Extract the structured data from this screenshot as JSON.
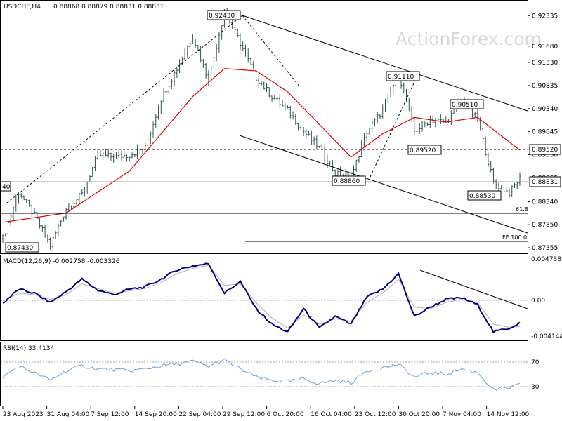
{
  "header": {
    "symbol": "USDCHF,H4",
    "ohlc": "0.88868 0.88879 0.88831 0.88831"
  },
  "watermark": "ActionForex.com",
  "colors": {
    "candle": "#2f4f4f",
    "ma": "#e00000",
    "macd": "#000080",
    "signal": "#b0b0b0",
    "rsi": "#6aa0d0",
    "trend": "#000000"
  },
  "chart_data": [
    {
      "type": "candlestick",
      "title": "USDCHF,H4",
      "ylim": [
        0.8725,
        0.9255
      ],
      "price_ticks": [
        "0.92335",
        "0.91680",
        "0.91330",
        "0.90835",
        "0.90340",
        "0.89845",
        "0.89350",
        "0.88855",
        "0.88340",
        "0.87850",
        "0.87355"
      ],
      "current_price_label": "0.88831",
      "level_label": "0.89520",
      "x_labels": [
        "23 Aug 2023",
        "31 Aug 04:00",
        "7 Sep 12:00",
        "14 Sep 20:00",
        "22 Sep 04:00",
        "29 Sep 12:00",
        "6 Oct 20:00",
        "16 Oct 04:00",
        "23 Oct 12:00",
        "30 Oct 20:00",
        "7 Nov 04:00",
        "14 Nov 12:00"
      ],
      "annotations": [
        "0.92430",
        "0.91110",
        "0.90510",
        "0.89520",
        "0.88860",
        "0.88530",
        "0.87430",
        "40",
        "61.8",
        "FE 100.0"
      ],
      "price_path_key": [
        [
          0,
          0.8755
        ],
        [
          6,
          0.8855
        ],
        [
          12,
          0.8805
        ],
        [
          18,
          0.874
        ],
        [
          24,
          0.882
        ],
        [
          30,
          0.885
        ],
        [
          36,
          0.8935
        ],
        [
          42,
          0.893
        ],
        [
          48,
          0.8935
        ],
        [
          54,
          0.895
        ],
        [
          60,
          0.9055
        ],
        [
          66,
          0.912
        ],
        [
          72,
          0.919
        ],
        [
          78,
          0.9095
        ],
        [
          84,
          0.9243
        ],
        [
          90,
          0.9175
        ],
        [
          96,
          0.91
        ],
        [
          102,
          0.906
        ],
        [
          108,
          0.903
        ],
        [
          114,
          0.8985
        ],
        [
          120,
          0.895
        ],
        [
          126,
          0.8895
        ],
        [
          132,
          0.8886
        ],
        [
          138,
          0.8985
        ],
        [
          144,
          0.903
        ],
        [
          150,
          0.9111
        ],
        [
          156,
          0.8985
        ],
        [
          162,
          0.901
        ],
        [
          168,
          0.9005
        ],
        [
          174,
          0.9051
        ],
        [
          180,
          0.901
        ],
        [
          186,
          0.8875
        ],
        [
          192,
          0.8853
        ],
        [
          196,
          0.8885
        ]
      ],
      "moving_average_key": [
        [
          0,
          0.879
        ],
        [
          24,
          0.881
        ],
        [
          48,
          0.89
        ],
        [
          72,
          0.906
        ],
        [
          84,
          0.912
        ],
        [
          96,
          0.9115
        ],
        [
          108,
          0.907
        ],
        [
          120,
          0.9
        ],
        [
          132,
          0.893
        ],
        [
          144,
          0.898
        ],
        [
          156,
          0.9015
        ],
        [
          168,
          0.9005
        ],
        [
          180,
          0.9015
        ],
        [
          196,
          0.8945
        ]
      ]
    },
    {
      "type": "line",
      "title": "MACD(12,26,9) -0.002758 -0.003326",
      "ylim": [
        -0.0048,
        0.0055
      ],
      "ticks": [
        "0.004738",
        "0.00",
        "-0.004144"
      ],
      "macd_key": [
        [
          0,
          -0.0003
        ],
        [
          6,
          0.0015
        ],
        [
          12,
          0.001
        ],
        [
          18,
          -0.0002
        ],
        [
          24,
          0.0012
        ],
        [
          30,
          0.0028
        ],
        [
          36,
          0.0014
        ],
        [
          42,
          0.0008
        ],
        [
          48,
          0.0015
        ],
        [
          54,
          0.0018
        ],
        [
          60,
          0.0028
        ],
        [
          66,
          0.004
        ],
        [
          72,
          0.0045
        ],
        [
          78,
          0.0048
        ],
        [
          84,
          0.001
        ],
        [
          90,
          0.0025
        ],
        [
          96,
          -0.001
        ],
        [
          102,
          -0.003
        ],
        [
          108,
          -0.004
        ],
        [
          114,
          -0.001
        ],
        [
          120,
          -0.0035
        ],
        [
          126,
          -0.002
        ],
        [
          132,
          -0.003
        ],
        [
          138,
          0.0005
        ],
        [
          144,
          0.0015
        ],
        [
          150,
          0.0035
        ],
        [
          156,
          -0.002
        ],
        [
          162,
          -0.0008
        ],
        [
          168,
          0.0002
        ],
        [
          174,
          0.0004
        ],
        [
          180,
          -0.0005
        ],
        [
          186,
          -0.004
        ],
        [
          192,
          -0.0035
        ],
        [
          196,
          -0.0028
        ]
      ],
      "signal_key": [
        [
          0,
          0.0
        ],
        [
          6,
          0.001
        ],
        [
          12,
          0.0008
        ],
        [
          18,
          0.0002
        ],
        [
          24,
          0.0008
        ],
        [
          30,
          0.0022
        ],
        [
          36,
          0.0016
        ],
        [
          42,
          0.001
        ],
        [
          48,
          0.0013
        ],
        [
          54,
          0.0016
        ],
        [
          60,
          0.0024
        ],
        [
          66,
          0.0035
        ],
        [
          72,
          0.0042
        ],
        [
          78,
          0.0046
        ],
        [
          84,
          0.002
        ],
        [
          90,
          0.0022
        ],
        [
          96,
          -0.0002
        ],
        [
          102,
          -0.0022
        ],
        [
          108,
          -0.0035
        ],
        [
          114,
          -0.0018
        ],
        [
          120,
          -0.003
        ],
        [
          126,
          -0.0023
        ],
        [
          132,
          -0.0026
        ],
        [
          138,
          -0.0002
        ],
        [
          144,
          0.001
        ],
        [
          150,
          0.0028
        ],
        [
          156,
          -0.0008
        ],
        [
          162,
          -0.001
        ],
        [
          168,
          -0.0002
        ],
        [
          174,
          0.0002
        ],
        [
          180,
          -0.0002
        ],
        [
          186,
          -0.003
        ],
        [
          192,
          -0.0034
        ],
        [
          196,
          -0.0033
        ]
      ]
    },
    {
      "type": "line",
      "title": "RSI(14) 33.4134",
      "ylim": [
        0,
        100
      ],
      "ticks": [
        "70",
        "30"
      ],
      "rsi_key": [
        [
          0,
          45
        ],
        [
          6,
          62
        ],
        [
          12,
          52
        ],
        [
          18,
          40
        ],
        [
          24,
          55
        ],
        [
          30,
          63
        ],
        [
          36,
          58
        ],
        [
          42,
          57
        ],
        [
          48,
          55
        ],
        [
          54,
          58
        ],
        [
          60,
          63
        ],
        [
          66,
          66
        ],
        [
          72,
          70
        ],
        [
          78,
          62
        ],
        [
          84,
          72
        ],
        [
          90,
          58
        ],
        [
          96,
          45
        ],
        [
          102,
          40
        ],
        [
          108,
          38
        ],
        [
          114,
          42
        ],
        [
          120,
          35
        ],
        [
          126,
          40
        ],
        [
          132,
          36
        ],
        [
          138,
          55
        ],
        [
          144,
          60
        ],
        [
          150,
          65
        ],
        [
          156,
          45
        ],
        [
          162,
          52
        ],
        [
          168,
          50
        ],
        [
          174,
          58
        ],
        [
          180,
          52
        ],
        [
          186,
          25
        ],
        [
          192,
          28
        ],
        [
          196,
          33
        ]
      ]
    }
  ]
}
